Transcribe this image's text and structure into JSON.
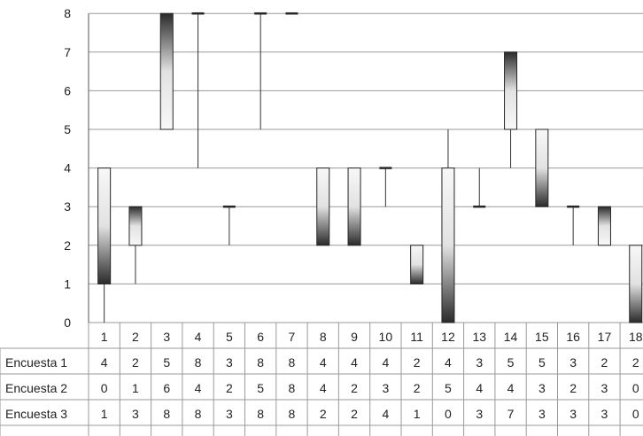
{
  "chart_data": {
    "type": "table",
    "chart_kind": "high-low-open-close (stock) chart with data table",
    "title": "",
    "xlabel": "",
    "ylabel": "",
    "ylim": [
      0,
      8
    ],
    "yticks": [
      0,
      1,
      2,
      3,
      4,
      5,
      6,
      7,
      8
    ],
    "grid": true,
    "legend": "none",
    "categories": [
      "1",
      "2",
      "3",
      "4",
      "5",
      "6",
      "7",
      "8",
      "9",
      "10",
      "11",
      "12",
      "13",
      "14",
      "15",
      "16",
      "17",
      "18"
    ],
    "series": [
      {
        "name": "Encuesta 1",
        "values": [
          4,
          2,
          5,
          8,
          3,
          8,
          8,
          4,
          4,
          4,
          2,
          4,
          3,
          5,
          5,
          3,
          2,
          2
        ]
      },
      {
        "name": "Encuesta 2",
        "values": [
          0,
          1,
          6,
          4,
          2,
          5,
          8,
          4,
          2,
          3,
          2,
          5,
          4,
          4,
          3,
          2,
          3,
          0
        ]
      },
      {
        "name": "Encuesta 3",
        "values": [
          1,
          3,
          8,
          8,
          3,
          8,
          8,
          2,
          2,
          4,
          1,
          0,
          3,
          7,
          3,
          3,
          3,
          0
        ]
      }
    ],
    "colors": {
      "grid": "#9a9a9a",
      "axis": "#555555",
      "box_dark": "#262626",
      "box_light": "#f5f5f5",
      "whisker": "#333333"
    }
  }
}
